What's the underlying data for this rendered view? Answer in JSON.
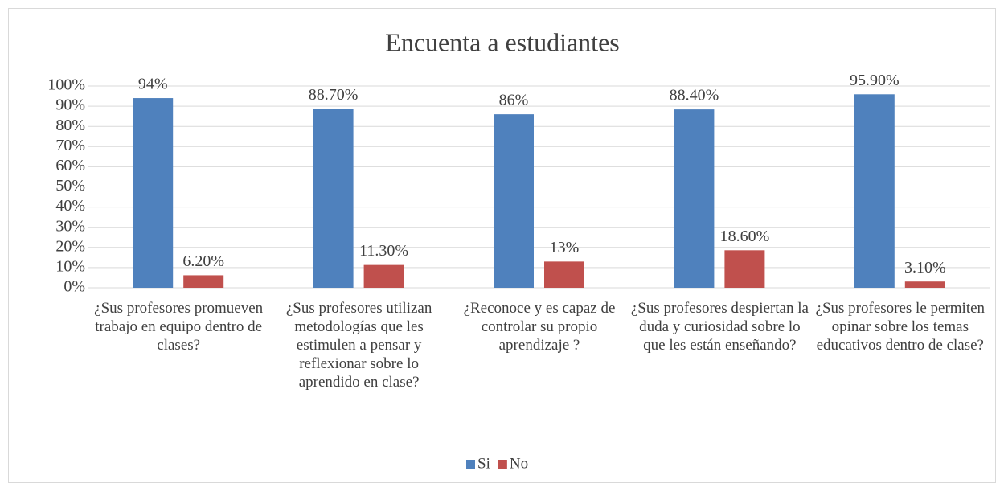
{
  "chart_data": {
    "type": "bar",
    "title": "Encuenta a estudiantes",
    "categories": [
      "¿Sus profesores promueven trabajo en equipo dentro de clases?",
      "¿Sus profesores utilizan metodologías que les estimulen a pensar y reflexionar sobre lo aprendido en clase?",
      "¿Reconoce y es capaz de controlar su propio aprendizaje ?",
      "¿Sus profesores despiertan la duda y curiosidad sobre lo que les están enseñando?",
      "¿Sus profesores le permiten opinar sobre los temas educativos dentro de clase?"
    ],
    "series": [
      {
        "name": "Si",
        "color": "#4f81bd",
        "values": [
          94,
          88.7,
          86,
          88.4,
          95.9
        ],
        "value_labels": [
          "94%",
          "88.70%",
          "86%",
          "88.40%",
          "95.90%"
        ]
      },
      {
        "name": "No",
        "color": "#c0504d",
        "values": [
          6.2,
          11.3,
          13,
          18.6,
          3.1
        ],
        "value_labels": [
          "6.20%",
          "11.30%",
          "13%",
          "18.60%",
          "3.10%"
        ]
      }
    ],
    "ylim": [
      0,
      100
    ],
    "yticks": [
      {
        "value": 0,
        "label": "0%"
      },
      {
        "value": 10,
        "label": "10%"
      },
      {
        "value": 20,
        "label": "20%"
      },
      {
        "value": 30,
        "label": "30%"
      },
      {
        "value": 40,
        "label": "40%"
      },
      {
        "value": 50,
        "label": "50%"
      },
      {
        "value": 60,
        "label": "60%"
      },
      {
        "value": 70,
        "label": "70%"
      },
      {
        "value": 80,
        "label": "80%"
      },
      {
        "value": 90,
        "label": "90%"
      },
      {
        "value": 100,
        "label": "100%"
      }
    ],
    "grid": true,
    "legend": "bottom"
  }
}
